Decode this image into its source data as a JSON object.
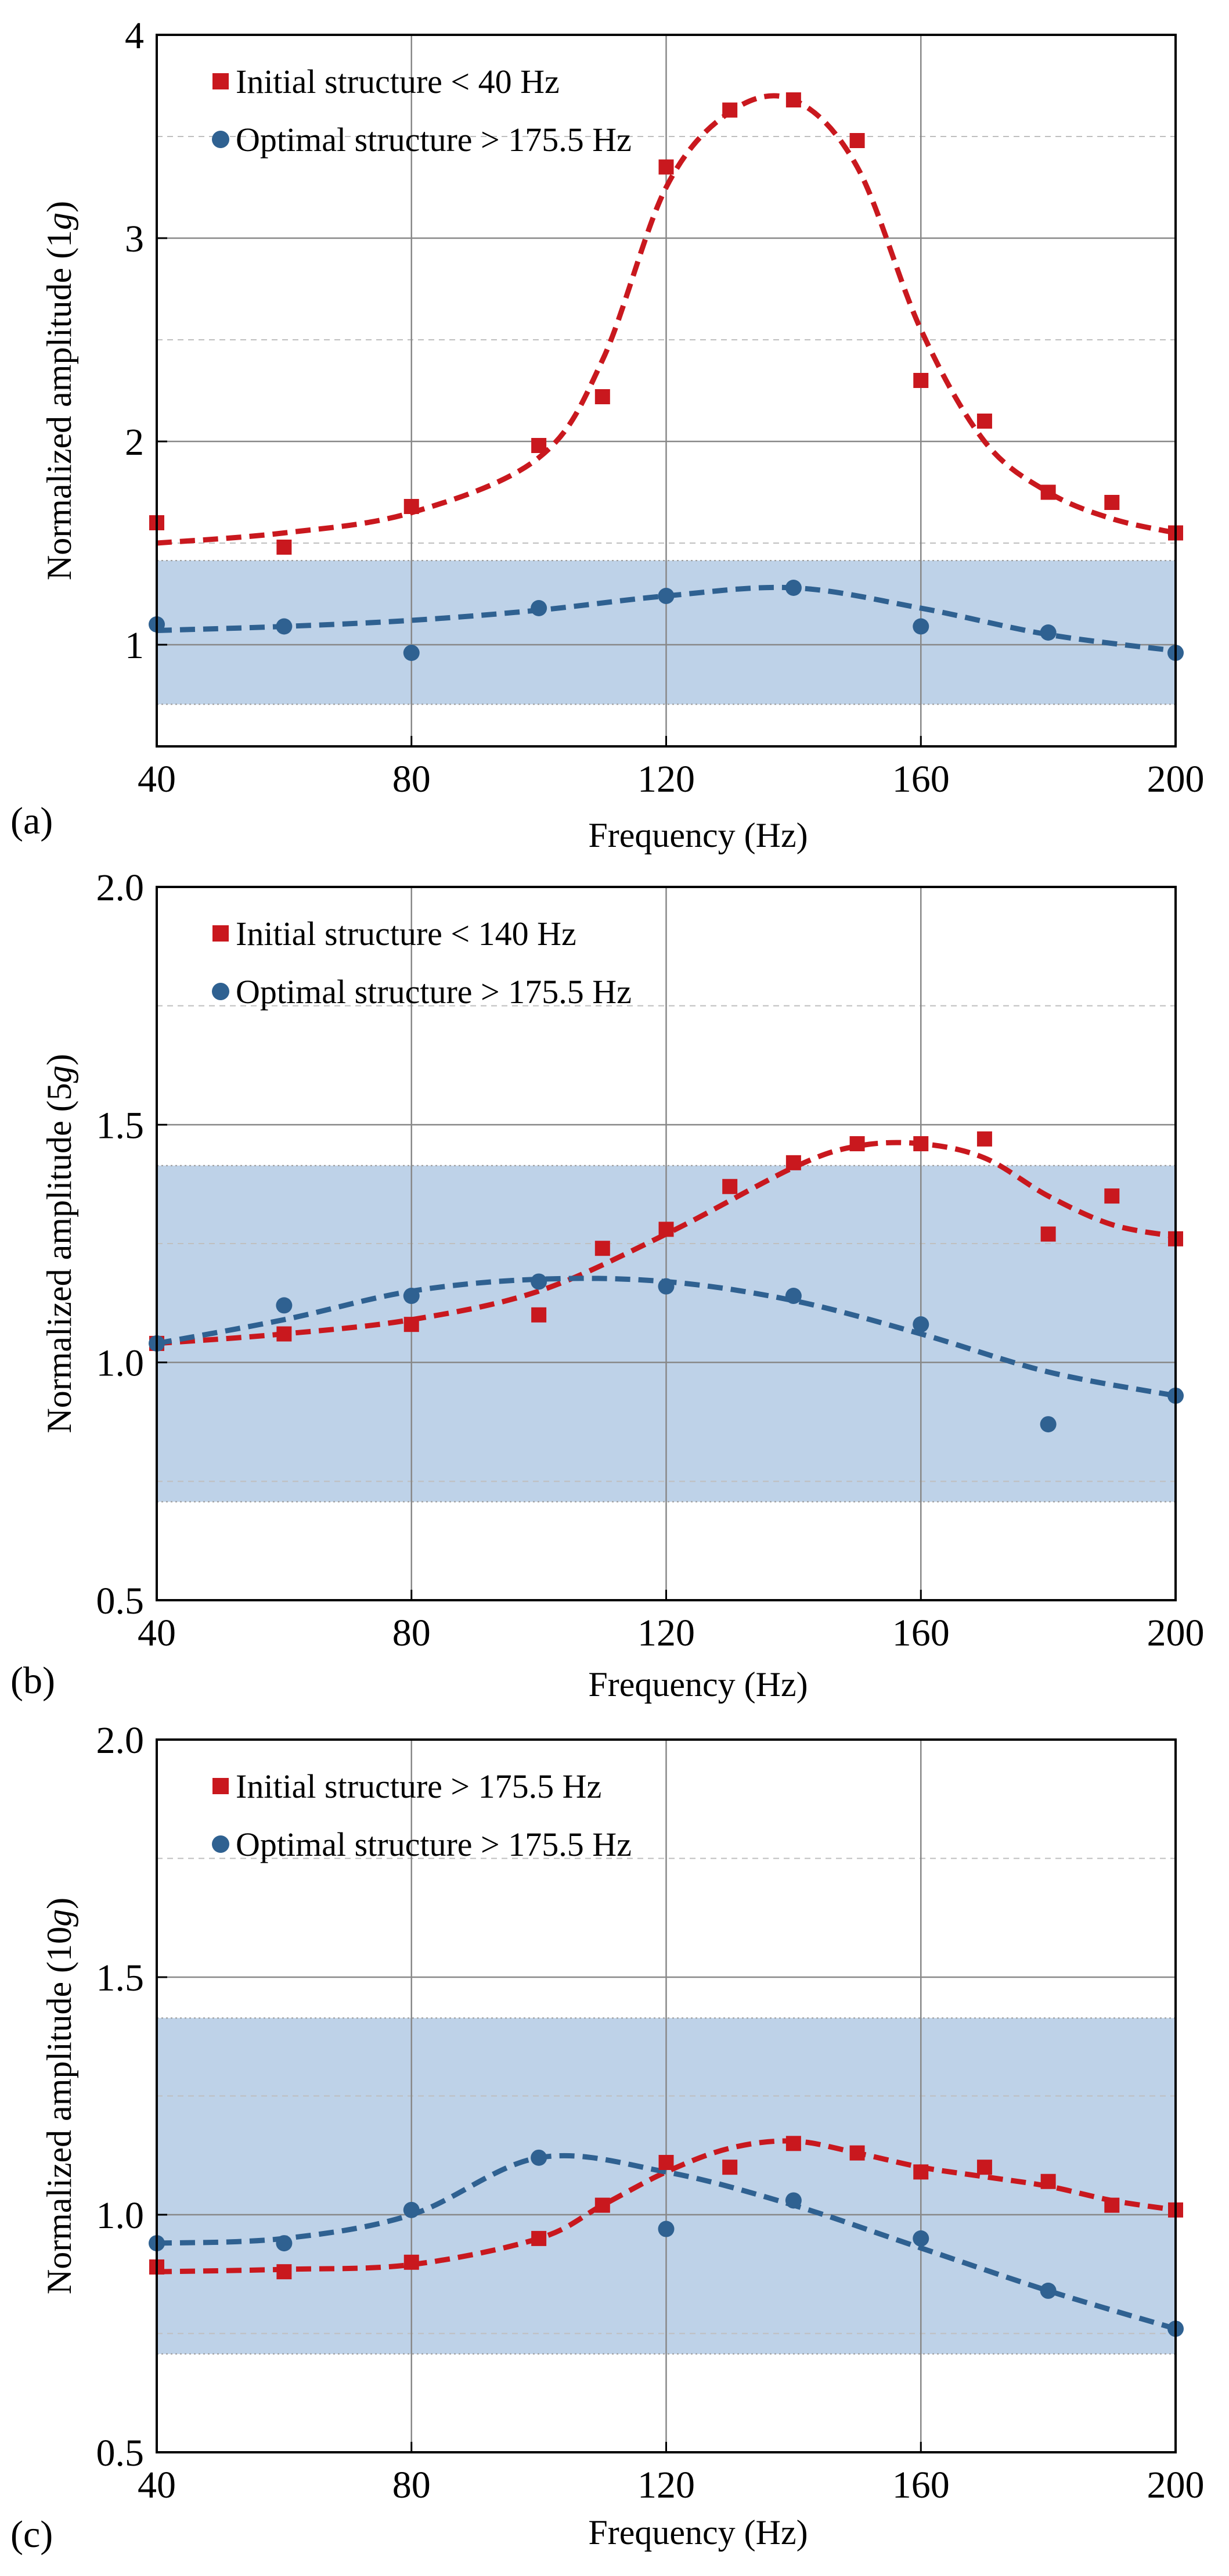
{
  "figure": {
    "panels": [
      "(a)",
      "(b)",
      "(c)"
    ]
  },
  "colors": {
    "initial": "#c9181e",
    "optimal": "#2f6191",
    "band": "#bed2e8",
    "grid": "#888888",
    "dashgrid": "#bfbfbf"
  },
  "chart_data": [
    {
      "type": "scatter",
      "panel": "(a)",
      "xlabel": "Frequency (Hz)",
      "ylabel": "Normalized amplitude (1g)",
      "ylabel_prefix": "Normalized amplitude (",
      "ylabel_accel": "1",
      "ylabel_g": "g",
      "ylabel_suffix": ")",
      "xlim": [
        40,
        200
      ],
      "ylim": [
        0.5,
        4
      ],
      "xticks": [
        40,
        80,
        120,
        160,
        200
      ],
      "xtick_labels": [
        "40",
        "80",
        "120",
        "160",
        "200"
      ],
      "yticks": [
        1,
        2,
        3,
        4
      ],
      "ytick_labels": [
        "1",
        "2",
        "3",
        "4"
      ],
      "dashed_gridlines": [
        1.5,
        2.5,
        3.5
      ],
      "band": [
        0.707,
        1.414
      ],
      "legend_position": "top-left",
      "series": [
        {
          "name": "Initial structure < 40 Hz",
          "marker": "square",
          "x": [
            40,
            60,
            80,
            100,
            110,
            120,
            130,
            140,
            150,
            160,
            170,
            180,
            190,
            200
          ],
          "y": [
            1.6,
            1.48,
            1.68,
            1.98,
            2.22,
            3.35,
            3.63,
            3.68,
            3.48,
            2.3,
            2.1,
            1.75,
            1.7,
            1.55
          ],
          "fit_x": [
            40,
            60,
            80,
            100,
            110,
            120,
            130,
            140,
            150,
            160,
            170,
            180,
            190,
            200
          ],
          "fit_y": [
            1.5,
            1.55,
            1.65,
            1.92,
            2.4,
            3.25,
            3.62,
            3.68,
            3.35,
            2.55,
            2.0,
            1.75,
            1.62,
            1.55
          ]
        },
        {
          "name": "Optimal structure > 175.5 Hz",
          "marker": "circle",
          "x": [
            40,
            60,
            80,
            100,
            120,
            140,
            160,
            180,
            200
          ],
          "y": [
            1.1,
            1.09,
            0.96,
            1.18,
            1.24,
            1.28,
            1.09,
            1.06,
            0.96
          ],
          "fit_x": [
            40,
            60,
            80,
            100,
            120,
            140,
            160,
            180,
            200
          ],
          "fit_y": [
            1.07,
            1.09,
            1.12,
            1.17,
            1.24,
            1.28,
            1.18,
            1.05,
            0.97
          ]
        }
      ]
    },
    {
      "type": "scatter",
      "panel": "(b)",
      "xlabel": "Frequency (Hz)",
      "ylabel": "Normalized amplitude (5g)",
      "ylabel_prefix": "Normalized amplitude (",
      "ylabel_accel": "5",
      "ylabel_g": "g",
      "ylabel_suffix": ")",
      "xlim": [
        40,
        200
      ],
      "ylim": [
        0.5,
        2.0
      ],
      "xticks": [
        40,
        80,
        120,
        160,
        200
      ],
      "xtick_labels": [
        "40",
        "80",
        "120",
        "160",
        "200"
      ],
      "yticks": [
        0.5,
        1.0,
        1.5,
        2.0
      ],
      "ytick_labels": [
        "0.5",
        "1.0",
        "1.5",
        "2.0"
      ],
      "dashed_gridlines": [
        0.75,
        1.25,
        1.75
      ],
      "band": [
        0.707,
        1.414
      ],
      "legend_position": "top-left",
      "series": [
        {
          "name": "Initial structure < 140 Hz",
          "marker": "square",
          "x": [
            40,
            60,
            80,
            100,
            110,
            120,
            130,
            140,
            150,
            160,
            170,
            180,
            190,
            200
          ],
          "y": [
            1.04,
            1.06,
            1.08,
            1.1,
            1.24,
            1.28,
            1.37,
            1.42,
            1.46,
            1.46,
            1.47,
            1.27,
            1.35,
            1.26
          ],
          "fit_x": [
            40,
            60,
            80,
            100,
            120,
            140,
            150,
            160,
            170,
            180,
            190,
            200
          ],
          "fit_y": [
            1.04,
            1.06,
            1.09,
            1.15,
            1.27,
            1.41,
            1.455,
            1.46,
            1.43,
            1.35,
            1.29,
            1.265
          ]
        },
        {
          "name": "Optimal structure > 175.5 Hz",
          "marker": "circle",
          "x": [
            40,
            60,
            80,
            100,
            120,
            140,
            160,
            180,
            200
          ],
          "y": [
            1.04,
            1.12,
            1.14,
            1.17,
            1.16,
            1.14,
            1.08,
            0.87,
            0.93
          ],
          "fit_x": [
            40,
            60,
            80,
            100,
            120,
            140,
            160,
            180,
            200
          ],
          "fit_y": [
            1.04,
            1.09,
            1.15,
            1.175,
            1.17,
            1.13,
            1.06,
            0.98,
            0.93
          ]
        }
      ]
    },
    {
      "type": "scatter",
      "panel": "(c)",
      "xlabel": "Frequency (Hz)",
      "ylabel": "Normalized amplitude (10g)",
      "ylabel_prefix": "Normalized amplitude (",
      "ylabel_accel": "10",
      "ylabel_g": "g",
      "ylabel_suffix": ")",
      "xlim": [
        40,
        200
      ],
      "ylim": [
        0.5,
        2.0
      ],
      "xticks": [
        40,
        80,
        120,
        160,
        200
      ],
      "xtick_labels": [
        "40",
        "80",
        "120",
        "160",
        "200"
      ],
      "yticks": [
        0.5,
        1.0,
        1.5,
        2.0
      ],
      "ytick_labels": [
        "0.5",
        "1.0",
        "1.5",
        "2.0"
      ],
      "dashed_gridlines": [
        0.75,
        1.25,
        1.75
      ],
      "band": [
        0.707,
        1.414
      ],
      "legend_position": "top-left",
      "series": [
        {
          "name": "Initial structure > 175.5 Hz",
          "marker": "square",
          "x": [
            40,
            60,
            80,
            100,
            110,
            120,
            130,
            140,
            150,
            160,
            170,
            180,
            190,
            200
          ],
          "y": [
            0.89,
            0.88,
            0.9,
            0.95,
            1.02,
            1.11,
            1.1,
            1.15,
            1.13,
            1.09,
            1.1,
            1.07,
            1.02,
            1.01
          ],
          "fit_x": [
            40,
            60,
            80,
            100,
            110,
            120,
            130,
            140,
            150,
            160,
            170,
            180,
            190,
            200
          ],
          "fit_y": [
            0.88,
            0.885,
            0.895,
            0.95,
            1.02,
            1.09,
            1.14,
            1.155,
            1.13,
            1.1,
            1.08,
            1.06,
            1.03,
            1.01
          ]
        },
        {
          "name": "Optimal structure > 175.5 Hz",
          "marker": "circle",
          "x": [
            40,
            60,
            80,
            100,
            120,
            140,
            160,
            180,
            200
          ],
          "y": [
            0.94,
            0.94,
            1.01,
            1.12,
            0.97,
            1.03,
            0.95,
            0.84,
            0.76
          ],
          "fit_x": [
            40,
            60,
            80,
            100,
            120,
            140,
            160,
            180,
            200
          ],
          "fit_y": [
            0.94,
            0.95,
            1.0,
            1.12,
            1.09,
            1.02,
            0.93,
            0.84,
            0.76
          ]
        }
      ]
    }
  ]
}
